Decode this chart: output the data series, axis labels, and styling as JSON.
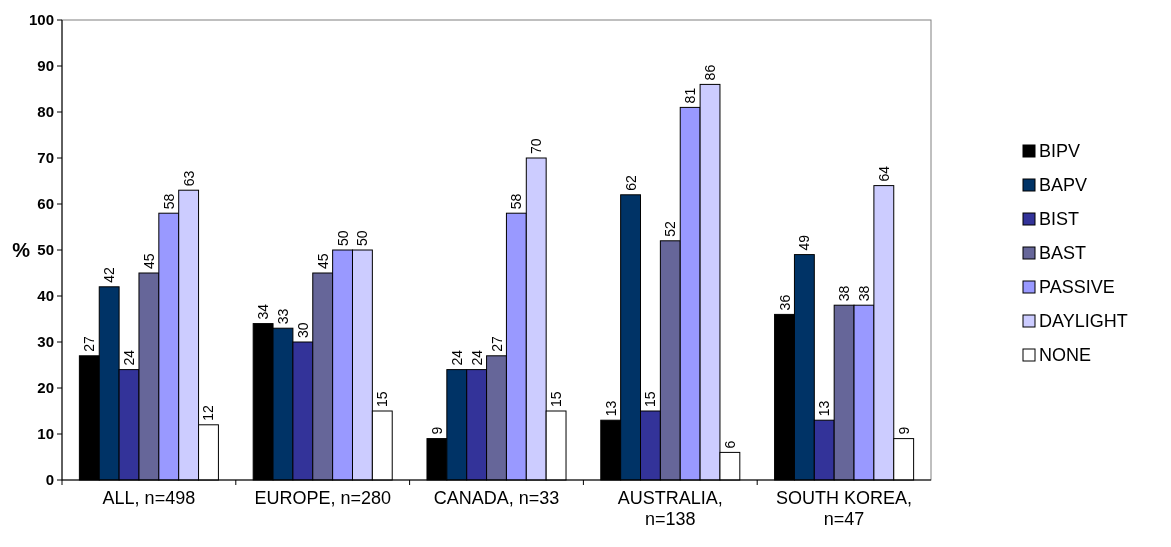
{
  "chart_data": {
    "type": "bar",
    "ylabel": "%",
    "categories": [
      "ALL, n=498",
      "EUROPE, n=280",
      "CANADA, n=33",
      "AUSTRALIA, n=138",
      "SOUTH KOREA, n=47"
    ],
    "series": [
      {
        "name": "BIPV",
        "color": "#000000",
        "values": [
          27,
          34,
          9,
          13,
          36
        ]
      },
      {
        "name": "BAPV",
        "color": "#003366",
        "values": [
          42,
          33,
          24,
          62,
          49
        ]
      },
      {
        "name": "BIST",
        "color": "#333399",
        "values": [
          24,
          30,
          24,
          15,
          13
        ]
      },
      {
        "name": "BAST",
        "color": "#666699",
        "values": [
          45,
          45,
          27,
          52,
          38
        ]
      },
      {
        "name": "PASSIVE",
        "color": "#9999ff",
        "values": [
          58,
          50,
          58,
          81,
          38
        ]
      },
      {
        "name": "DAYLIGHT",
        "color": "#ccccff",
        "values": [
          63,
          50,
          70,
          86,
          64
        ]
      },
      {
        "name": "NONE",
        "color": "#ffffff",
        "values": [
          12,
          15,
          15,
          6,
          9
        ]
      }
    ],
    "ylim": [
      0,
      100
    ],
    "yticks": [
      0,
      10,
      20,
      30,
      40,
      50,
      60,
      70,
      80,
      90,
      100
    ],
    "grid": false,
    "legend": "right",
    "data_labels": true
  }
}
